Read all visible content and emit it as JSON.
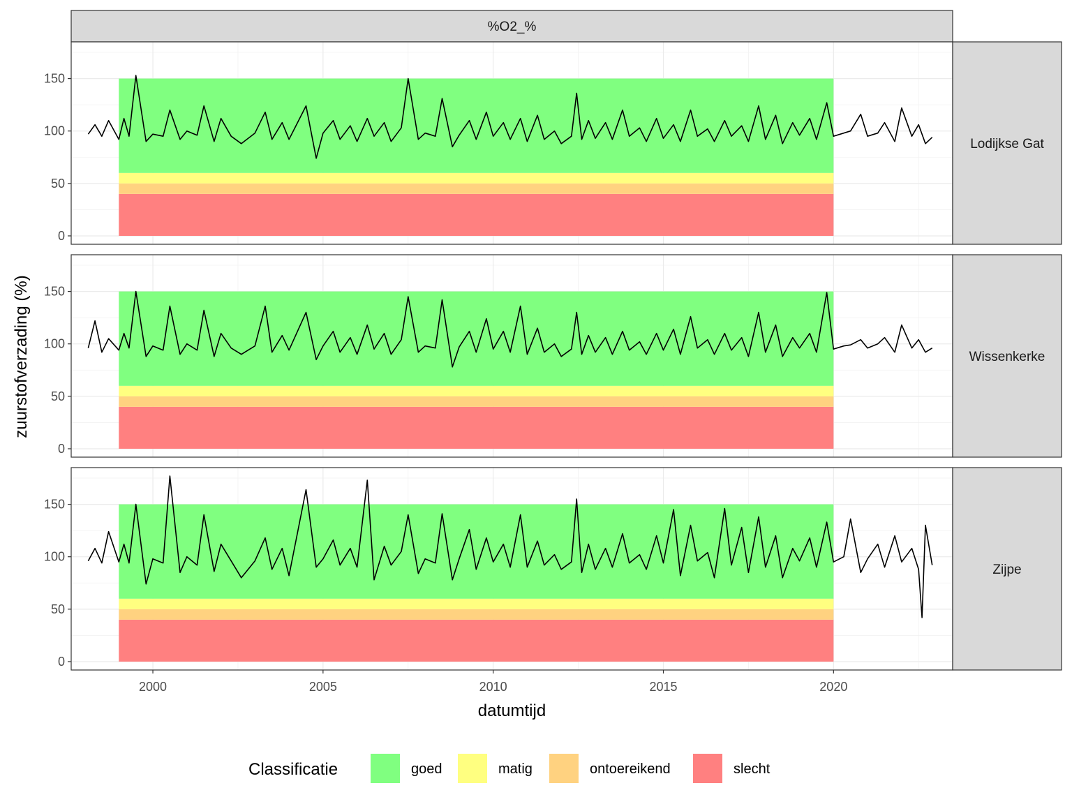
{
  "chart_data": {
    "type": "line",
    "facet_column_label": "%O2_%",
    "xlabel": "datumtijd",
    "ylabel": "zuurstofverzading (%)",
    "xlim": [
      1997.6,
      2023.5
    ],
    "ylim": [
      -8,
      185
    ],
    "x_ticks": [
      2000,
      2005,
      2010,
      2015,
      2020
    ],
    "y_ticks": [
      0,
      50,
      100,
      150
    ],
    "grid": true,
    "legend": {
      "title": "Classificatie",
      "position": "bottom",
      "entries": [
        {
          "label": "goed",
          "color": "#80ff80"
        },
        {
          "label": "matig",
          "color": "#ffff80"
        },
        {
          "label": "ontoereikend",
          "color": "#ffd280"
        },
        {
          "label": "slecht",
          "color": "#ff8080"
        }
      ]
    },
    "classification_bands": {
      "x_start": 1999.0,
      "x_end": 2020.0,
      "bands": [
        {
          "label": "slecht",
          "y_from": 0,
          "y_to": 40,
          "color": "#ff8080"
        },
        {
          "label": "ontoereikend",
          "y_from": 40,
          "y_to": 50,
          "color": "#ffd280"
        },
        {
          "label": "matig",
          "y_from": 50,
          "y_to": 60,
          "color": "#ffff80"
        },
        {
          "label": "goed",
          "y_from": 60,
          "y_to": 150,
          "color": "#80ff80"
        }
      ]
    },
    "panels": [
      {
        "name": "Lodijkse Gat",
        "x": [
          1998.1,
          1998.3,
          1998.5,
          1998.7,
          1999.0,
          1999.15,
          1999.3,
          1999.5,
          1999.8,
          2000.0,
          2000.3,
          2000.5,
          2000.8,
          2001.0,
          2001.3,
          2001.5,
          2001.8,
          2002.0,
          2002.3,
          2002.6,
          2003.0,
          2003.3,
          2003.5,
          2003.8,
          2004.0,
          2004.5,
          2004.8,
          2005.0,
          2005.3,
          2005.5,
          2005.8,
          2006.0,
          2006.3,
          2006.5,
          2006.8,
          2007.0,
          2007.3,
          2007.5,
          2007.8,
          2008.0,
          2008.3,
          2008.5,
          2008.8,
          2009.0,
          2009.3,
          2009.5,
          2009.8,
          2010.0,
          2010.3,
          2010.5,
          2010.8,
          2011.0,
          2011.3,
          2011.5,
          2011.8,
          2012.0,
          2012.3,
          2012.45,
          2012.6,
          2012.8,
          2013.0,
          2013.3,
          2013.5,
          2013.8,
          2014.0,
          2014.3,
          2014.5,
          2014.8,
          2015.0,
          2015.3,
          2015.5,
          2015.8,
          2016.0,
          2016.3,
          2016.5,
          2016.8,
          2017.0,
          2017.3,
          2017.5,
          2017.8,
          2018.0,
          2018.3,
          2018.5,
          2018.8,
          2019.0,
          2019.3,
          2019.5,
          2019.8,
          2020.0,
          2020.3,
          2020.5,
          2020.8,
          2021.0,
          2021.3,
          2021.5,
          2021.8,
          2022.0,
          2022.3,
          2022.5,
          2022.7,
          2022.9
        ],
        "y": [
          97,
          106,
          95,
          110,
          92,
          112,
          95,
          153,
          90,
          97,
          95,
          120,
          92,
          100,
          96,
          124,
          90,
          112,
          95,
          88,
          98,
          118,
          92,
          108,
          92,
          124,
          74,
          98,
          110,
          92,
          105,
          90,
          112,
          95,
          108,
          90,
          103,
          150,
          92,
          98,
          95,
          131,
          85,
          96,
          110,
          92,
          118,
          95,
          108,
          92,
          112,
          90,
          115,
          92,
          100,
          88,
          95,
          136,
          92,
          110,
          93,
          108,
          92,
          120,
          95,
          103,
          90,
          112,
          93,
          106,
          90,
          120,
          95,
          102,
          90,
          110,
          95,
          105,
          90,
          124,
          92,
          115,
          88,
          108,
          96,
          112,
          92,
          127,
          95,
          98,
          100,
          116,
          95,
          98,
          108,
          90,
          122,
          95,
          106,
          88,
          94
        ]
      },
      {
        "name": "Wissenkerke",
        "x": [
          1998.1,
          1998.3,
          1998.5,
          1998.7,
          1999.0,
          1999.15,
          1999.3,
          1999.5,
          1999.8,
          2000.0,
          2000.3,
          2000.5,
          2000.8,
          2001.0,
          2001.3,
          2001.5,
          2001.8,
          2002.0,
          2002.3,
          2002.6,
          2003.0,
          2003.3,
          2003.5,
          2003.8,
          2004.0,
          2004.5,
          2004.8,
          2005.0,
          2005.3,
          2005.5,
          2005.8,
          2006.0,
          2006.3,
          2006.5,
          2006.8,
          2007.0,
          2007.3,
          2007.5,
          2007.8,
          2008.0,
          2008.3,
          2008.5,
          2008.8,
          2009.0,
          2009.3,
          2009.5,
          2009.8,
          2010.0,
          2010.3,
          2010.5,
          2010.8,
          2011.0,
          2011.3,
          2011.5,
          2011.8,
          2012.0,
          2012.3,
          2012.45,
          2012.6,
          2012.8,
          2013.0,
          2013.3,
          2013.5,
          2013.8,
          2014.0,
          2014.3,
          2014.5,
          2014.8,
          2015.0,
          2015.3,
          2015.5,
          2015.8,
          2016.0,
          2016.3,
          2016.5,
          2016.8,
          2017.0,
          2017.3,
          2017.5,
          2017.8,
          2018.0,
          2018.3,
          2018.5,
          2018.8,
          2019.0,
          2019.3,
          2019.5,
          2019.8,
          2020.0,
          2020.3,
          2020.5,
          2020.8,
          2021.0,
          2021.3,
          2021.5,
          2021.8,
          2022.0,
          2022.3,
          2022.5,
          2022.7,
          2022.9
        ],
        "y": [
          96,
          122,
          92,
          105,
          94,
          110,
          96,
          150,
          88,
          98,
          94,
          136,
          90,
          100,
          94,
          132,
          88,
          110,
          96,
          90,
          98,
          136,
          92,
          108,
          94,
          130,
          85,
          98,
          112,
          92,
          106,
          90,
          118,
          95,
          110,
          90,
          104,
          145,
          92,
          98,
          96,
          142,
          78,
          97,
          112,
          92,
          124,
          95,
          112,
          92,
          136,
          90,
          115,
          92,
          100,
          88,
          95,
          130,
          90,
          108,
          92,
          106,
          90,
          112,
          94,
          102,
          90,
          110,
          94,
          114,
          90,
          126,
          96,
          104,
          90,
          110,
          94,
          106,
          88,
          130,
          92,
          118,
          88,
          106,
          96,
          110,
          92,
          149,
          95,
          98,
          99,
          104,
          96,
          100,
          106,
          92,
          118,
          96,
          104,
          92,
          96
        ]
      },
      {
        "name": "Zijpe",
        "x": [
          1998.1,
          1998.3,
          1998.5,
          1998.7,
          1999.0,
          1999.15,
          1999.3,
          1999.5,
          1999.8,
          2000.0,
          2000.3,
          2000.5,
          2000.8,
          2001.0,
          2001.3,
          2001.5,
          2001.8,
          2002.0,
          2002.3,
          2002.6,
          2003.0,
          2003.3,
          2003.5,
          2003.8,
          2004.0,
          2004.5,
          2004.8,
          2005.0,
          2005.3,
          2005.5,
          2005.8,
          2006.0,
          2006.3,
          2006.5,
          2006.8,
          2007.0,
          2007.3,
          2007.5,
          2007.8,
          2008.0,
          2008.3,
          2008.5,
          2008.8,
          2009.0,
          2009.3,
          2009.5,
          2009.8,
          2010.0,
          2010.3,
          2010.5,
          2010.8,
          2011.0,
          2011.3,
          2011.5,
          2011.8,
          2012.0,
          2012.3,
          2012.45,
          2012.6,
          2012.8,
          2013.0,
          2013.3,
          2013.5,
          2013.8,
          2014.0,
          2014.3,
          2014.5,
          2014.8,
          2015.0,
          2015.3,
          2015.5,
          2015.8,
          2016.0,
          2016.3,
          2016.5,
          2016.8,
          2017.0,
          2017.3,
          2017.5,
          2017.8,
          2018.0,
          2018.3,
          2018.5,
          2018.8,
          2019.0,
          2019.3,
          2019.5,
          2019.8,
          2020.0,
          2020.3,
          2020.5,
          2020.8,
          2021.0,
          2021.3,
          2021.5,
          2021.8,
          2022.0,
          2022.3,
          2022.5,
          2022.6,
          2022.7,
          2022.9
        ],
        "y": [
          96,
          108,
          94,
          124,
          95,
          112,
          94,
          150,
          74,
          98,
          94,
          177,
          85,
          100,
          92,
          140,
          86,
          112,
          96,
          80,
          96,
          118,
          88,
          108,
          82,
          164,
          90,
          98,
          116,
          92,
          108,
          90,
          173,
          78,
          110,
          92,
          105,
          140,
          84,
          98,
          94,
          141,
          78,
          98,
          126,
          88,
          118,
          95,
          112,
          90,
          140,
          90,
          115,
          92,
          102,
          88,
          95,
          155,
          85,
          112,
          88,
          108,
          90,
          122,
          94,
          102,
          88,
          120,
          94,
          145,
          82,
          130,
          96,
          104,
          80,
          146,
          92,
          128,
          85,
          138,
          90,
          120,
          80,
          108,
          96,
          118,
          90,
          133,
          95,
          100,
          136,
          85,
          98,
          112,
          90,
          120,
          95,
          108,
          88,
          42,
          130,
          92
        ]
      }
    ]
  }
}
